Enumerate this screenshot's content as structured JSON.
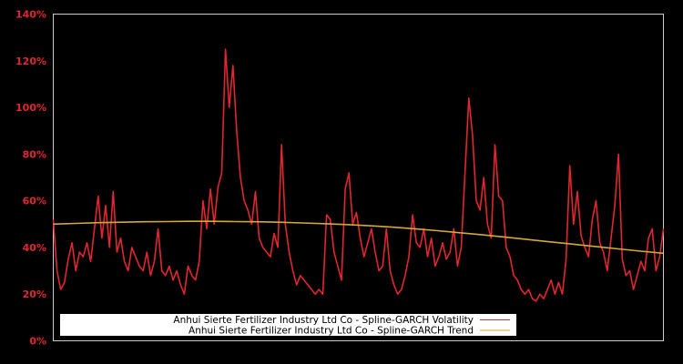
{
  "chart_data": {
    "type": "line",
    "title": "",
    "xlabel": "",
    "ylabel": "",
    "ylim": [
      0,
      140
    ],
    "y_ticks": [
      "0%",
      "20%",
      "40%",
      "60%",
      "80%",
      "100%",
      "120%",
      "140%"
    ],
    "y_tick_values": [
      0,
      20,
      40,
      60,
      80,
      100,
      120,
      140
    ],
    "grid": false,
    "legend_position": "bottom-inside",
    "background": "#000000",
    "frame_color": "#cccccc",
    "series": [
      {
        "name": "Anhui Sierte Fertilizer Industry Ltd Co - Spline-GARCH Volatility",
        "color": "#e0262f",
        "values": [
          52,
          30,
          22,
          25,
          35,
          42,
          30,
          38,
          36,
          42,
          34,
          48,
          62,
          44,
          58,
          40,
          64,
          38,
          44,
          34,
          30,
          40,
          36,
          32,
          30,
          38,
          28,
          34,
          48,
          30,
          28,
          32,
          26,
          30,
          24,
          20,
          32,
          28,
          26,
          34,
          60,
          48,
          65,
          50,
          66,
          72,
          125,
          100,
          118,
          90,
          70,
          60,
          56,
          50,
          64,
          44,
          40,
          38,
          36,
          46,
          40,
          84,
          50,
          38,
          30,
          24,
          28,
          26,
          24,
          22,
          20,
          22,
          20,
          54,
          52,
          38,
          32,
          26,
          65,
          72,
          50,
          55,
          44,
          36,
          42,
          48,
          38,
          30,
          32,
          48,
          30,
          24,
          20,
          22,
          28,
          36,
          54,
          42,
          40,
          48,
          36,
          44,
          32,
          36,
          42,
          35,
          38,
          48,
          32,
          40,
          72,
          104,
          88,
          60,
          56,
          70,
          50,
          44,
          84,
          62,
          60,
          40,
          36,
          28,
          26,
          22,
          20,
          22,
          18,
          17,
          20,
          18,
          22,
          26,
          20,
          25,
          20,
          35,
          75,
          50,
          64,
          45,
          40,
          36,
          52,
          60,
          42,
          38,
          30,
          44,
          58,
          80,
          35,
          28,
          30,
          22,
          28,
          34,
          30,
          44,
          48,
          30,
          36,
          48
        ]
      },
      {
        "name": "Anhui Sierte Fertilizer Industry Ltd Co - Spline-GARCH Trend",
        "color": "#d4a83a",
        "values": [
          50,
          50.3,
          50.6,
          50.8,
          51,
          51.1,
          51.2,
          51.2,
          51.1,
          51,
          50.8,
          50.5,
          50.2,
          49.8,
          49.3,
          48.7,
          48,
          47.2,
          46.3,
          45.4,
          44.4,
          43.4,
          42.4,
          41.4,
          40.4,
          39.4,
          38.4,
          37.5
        ]
      }
    ]
  },
  "legend": {
    "items": [
      {
        "label": "Anhui Sierte Fertilizer Industry Ltd Co - Spline-GARCH Volatility",
        "color": "#e0262f"
      },
      {
        "label": "Anhui Sierte Fertilizer Industry Ltd Co - Spline-GARCH Trend",
        "color": "#d4a83a"
      }
    ]
  }
}
